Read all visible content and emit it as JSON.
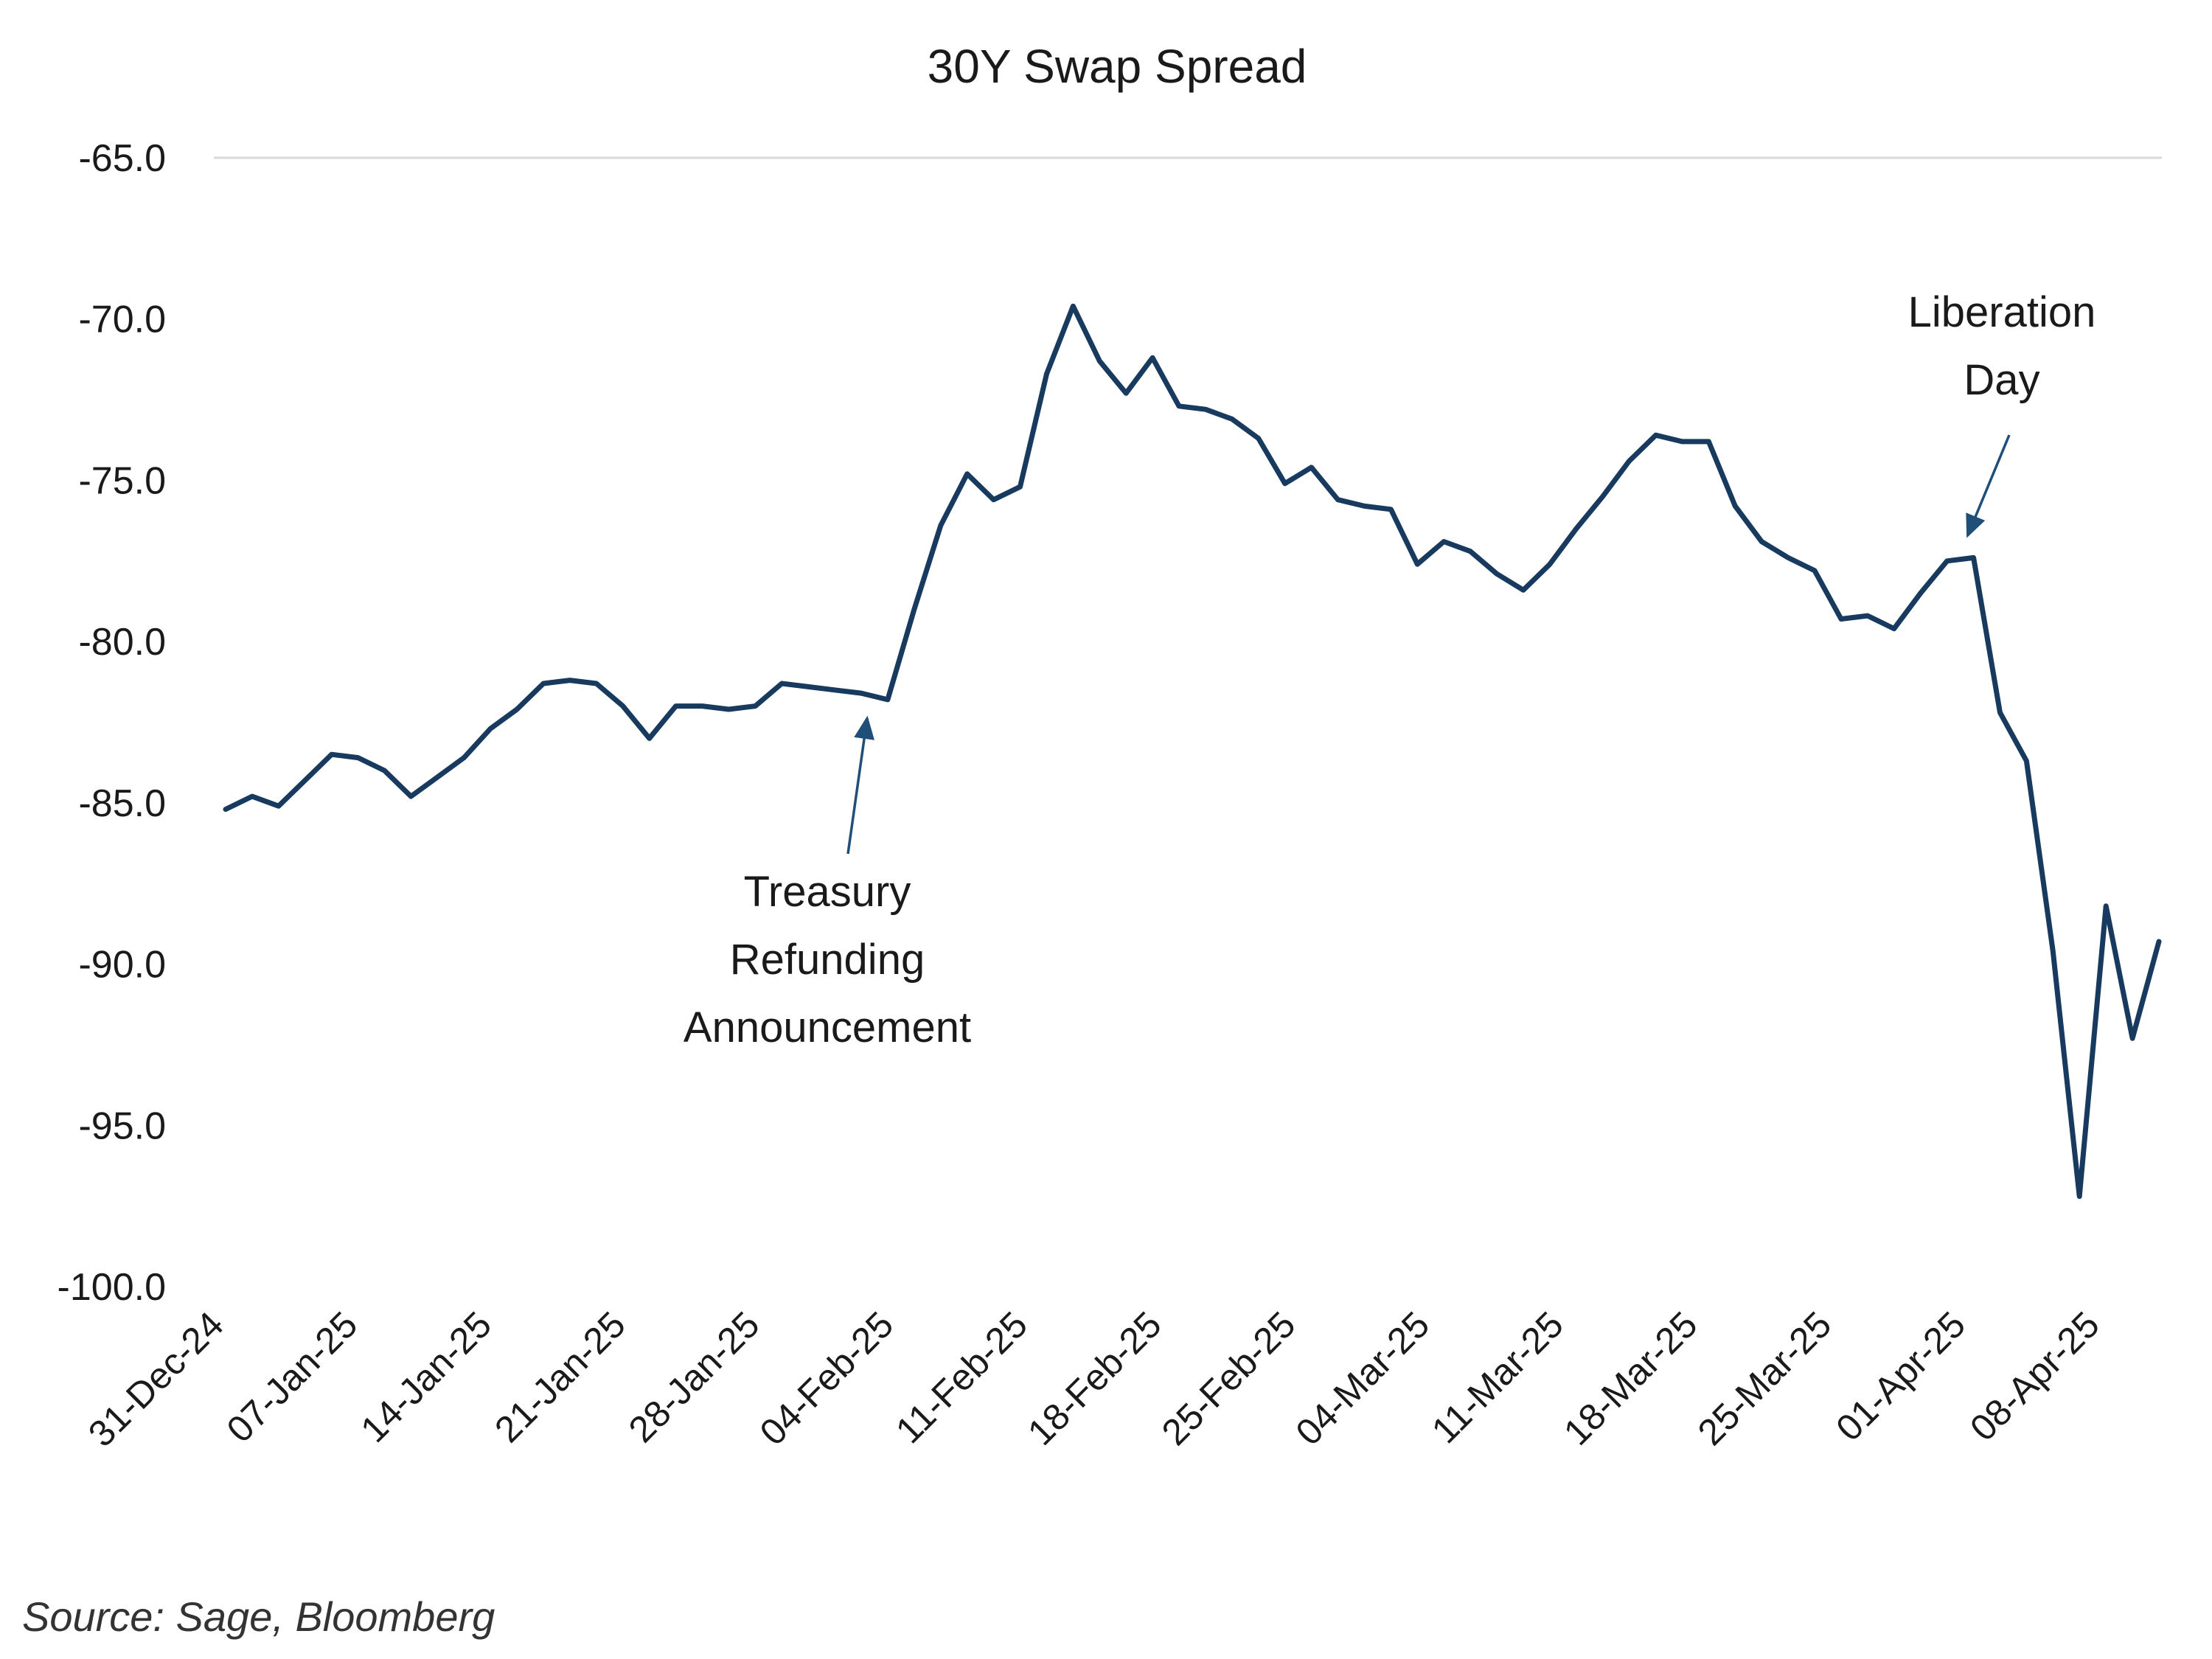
{
  "chart_data": {
    "type": "line",
    "title": "30Y Swap Spread",
    "source": "Source: Sage, Bloomberg",
    "xlabel": "",
    "ylabel": "",
    "ylim": [
      -100,
      -65
    ],
    "yticks": [
      "-65.0",
      "-70.0",
      "-75.0",
      "-80.0",
      "-85.0",
      "-90.0",
      "-95.0",
      "-100.0"
    ],
    "grid": "top-line-only",
    "legend": "none",
    "x_tick_labels": [
      "31-Dec-24",
      "07-Jan-25",
      "14-Jan-25",
      "21-Jan-25",
      "28-Jan-25",
      "04-Feb-25",
      "11-Feb-25",
      "18-Feb-25",
      "25-Feb-25",
      "04-Mar-25",
      "11-Mar-25",
      "18-Mar-25",
      "25-Mar-25",
      "01-Apr-25",
      "08-Apr-25"
    ],
    "series": [
      {
        "color": "#173a5e",
        "x": [
          "2024-12-31",
          "2025-01-01",
          "2025-01-02",
          "2025-01-03",
          "2025-01-06",
          "2025-01-07",
          "2025-01-08",
          "2025-01-09",
          "2025-01-10",
          "2025-01-13",
          "2025-01-14",
          "2025-01-15",
          "2025-01-16",
          "2025-01-17",
          "2025-01-20",
          "2025-01-21",
          "2025-01-22",
          "2025-01-23",
          "2025-01-24",
          "2025-01-27",
          "2025-01-28",
          "2025-01-29",
          "2025-01-30",
          "2025-01-31",
          "2025-02-03",
          "2025-02-04",
          "2025-02-05",
          "2025-02-06",
          "2025-02-07",
          "2025-02-10",
          "2025-02-11",
          "2025-02-12",
          "2025-02-13",
          "2025-02-14",
          "2025-02-17",
          "2025-02-18",
          "2025-02-19",
          "2025-02-20",
          "2025-02-21",
          "2025-02-24",
          "2025-02-25",
          "2025-02-26",
          "2025-02-27",
          "2025-02-28",
          "2025-03-03",
          "2025-03-04",
          "2025-03-05",
          "2025-03-06",
          "2025-03-07",
          "2025-03-10",
          "2025-03-11",
          "2025-03-12",
          "2025-03-13",
          "2025-03-14",
          "2025-03-17",
          "2025-03-18",
          "2025-03-19",
          "2025-03-20",
          "2025-03-21",
          "2025-03-24",
          "2025-03-25",
          "2025-03-26",
          "2025-03-27",
          "2025-03-28",
          "2025-03-31",
          "2025-04-01",
          "2025-04-02",
          "2025-04-03",
          "2025-04-04",
          "2025-04-07",
          "2025-04-08",
          "2025-04-09",
          "2025-04-10",
          "2025-04-11"
        ],
        "values": [
          -85.2,
          -84.8,
          -85.1,
          -84.3,
          -83.5,
          -83.6,
          -84.0,
          -84.8,
          -84.2,
          -83.6,
          -82.7,
          -82.1,
          -81.3,
          -81.2,
          -81.3,
          -82.0,
          -83.0,
          -82.0,
          -82.0,
          -82.1,
          -82.0,
          -81.3,
          -81.4,
          -81.5,
          -81.6,
          -81.8,
          -79.0,
          -76.4,
          -74.8,
          -75.6,
          -75.2,
          -71.7,
          -69.6,
          -71.3,
          -72.3,
          -71.2,
          -72.7,
          -72.8,
          -73.1,
          -73.7,
          -75.1,
          -74.6,
          -75.6,
          -75.8,
          -75.9,
          -77.6,
          -76.9,
          -77.2,
          -77.9,
          -78.4,
          -77.6,
          -76.5,
          -75.5,
          -74.4,
          -73.6,
          -73.8,
          -73.8,
          -75.8,
          -76.9,
          -77.4,
          -77.8,
          -79.3,
          -79.2,
          -79.6,
          -78.5,
          -77.5,
          -77.4,
          -82.2,
          -83.7,
          -89.6,
          -97.2,
          -88.2,
          -92.3,
          -89.3
        ]
      }
    ],
    "annotations": [
      {
        "lines": [
          "Treasury",
          "Refunding",
          "Announcement"
        ],
        "points_to_date": "2025-02-03"
      },
      {
        "lines": [
          "Liberation",
          "Day"
        ],
        "points_to_date": "2025-04-02"
      }
    ]
  }
}
